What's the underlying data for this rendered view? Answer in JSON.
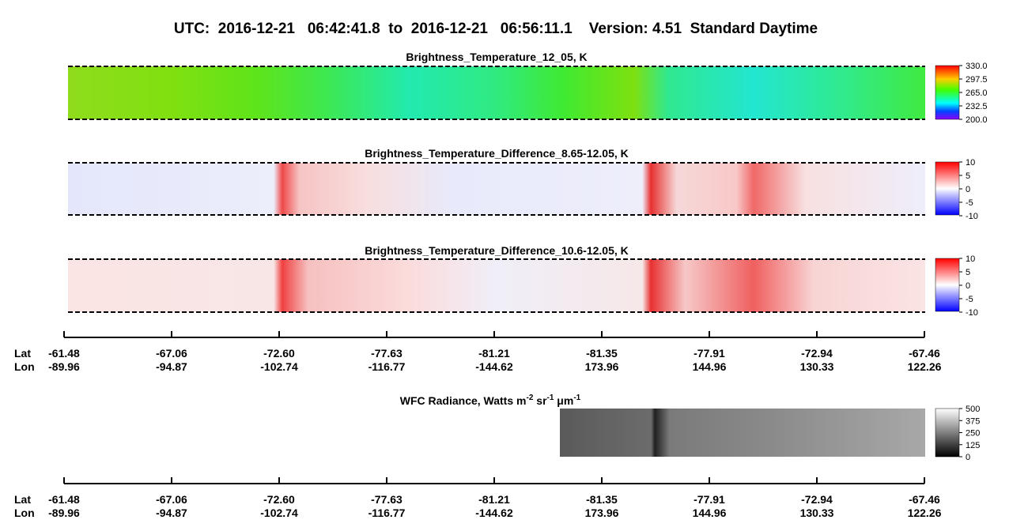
{
  "header": {
    "title": "UTC:  2016-12-21   06:42:41.8  to  2016-12-21   06:56:11.1    Version: 4.51  Standard Daytime"
  },
  "panels": [
    {
      "title": "Brightness_Temperature_12_05, K",
      "colorbar": [
        "330.0",
        "297.5",
        "265.0",
        "232.5",
        "200.0"
      ]
    },
    {
      "title": "Brightness_Temperature_Difference_8.65-12.05, K",
      "colorbar": [
        "10",
        "5",
        "0",
        "-5",
        "-10"
      ]
    },
    {
      "title": "Brightness_Temperature_Difference_10.6-12.05, K",
      "colorbar": [
        "10",
        "5",
        "0",
        "-5",
        "-10"
      ]
    }
  ],
  "wfc": {
    "title_parts": [
      "WFC Radiance, Watts m",
      "-2",
      " sr",
      "-1",
      " μm",
      "-1"
    ],
    "colorbar": [
      "500",
      "375",
      "250",
      "125",
      "0"
    ]
  },
  "axis": {
    "lat_label": "Lat",
    "lon_label": "Lon",
    "lat": [
      "-61.48",
      "-67.06",
      "-72.60",
      "-77.63",
      "-81.21",
      "-81.35",
      "-77.91",
      "-72.94",
      "-67.46"
    ],
    "lon": [
      "-89.96",
      "-94.87",
      "-102.74",
      "-116.77",
      "-144.62",
      "173.96",
      "144.96",
      "130.33",
      "122.26"
    ]
  }
}
